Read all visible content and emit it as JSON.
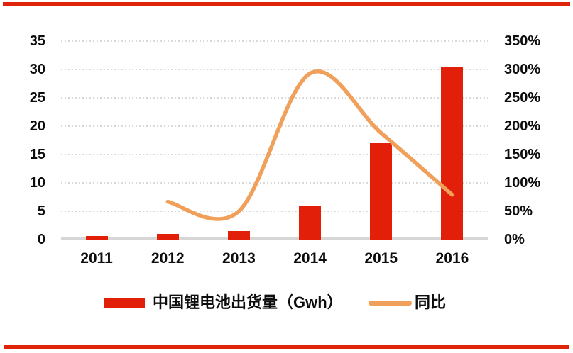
{
  "colors": {
    "bar_red": "#e2200a",
    "line_orange": "#f0a05a",
    "rule_red": "#e02409",
    "grid_gray": "#d9d9d9",
    "axis_gray": "#d6d6d6"
  },
  "legend": {
    "bar_label": "中国锂电池出货量（Gwh）",
    "line_label": "同比"
  },
  "chart_data": {
    "type": "bar",
    "subtype": "bar+line combo, dual axis",
    "title": "",
    "categories": [
      "2011",
      "2012",
      "2013",
      "2014",
      "2015",
      "2016"
    ],
    "series": [
      {
        "name": "中国锂电池出货量（Gwh）",
        "type": "bar",
        "axis": "left",
        "color": "#e2200a",
        "values": [
          0.6,
          1.0,
          1.5,
          5.9,
          17.0,
          30.5
        ]
      },
      {
        "name": "同比",
        "type": "line",
        "axis": "right",
        "color": "#f0a05a",
        "unit": "%",
        "values": [
          null,
          66.7,
          50,
          293,
          188,
          79
        ]
      }
    ],
    "left_axis": {
      "min": 0,
      "max": 35,
      "step": 5,
      "tick_labels": [
        "0",
        "5",
        "10",
        "15",
        "20",
        "25",
        "30",
        "35"
      ]
    },
    "right_axis": {
      "min": 0,
      "max": 350,
      "step": 50,
      "tick_labels": [
        "0%",
        "50%",
        "100%",
        "150%",
        "200%",
        "250%",
        "300%",
        "350%"
      ]
    },
    "grid": "horizontal dotted",
    "legend_position": "bottom",
    "smooth_line": true
  }
}
